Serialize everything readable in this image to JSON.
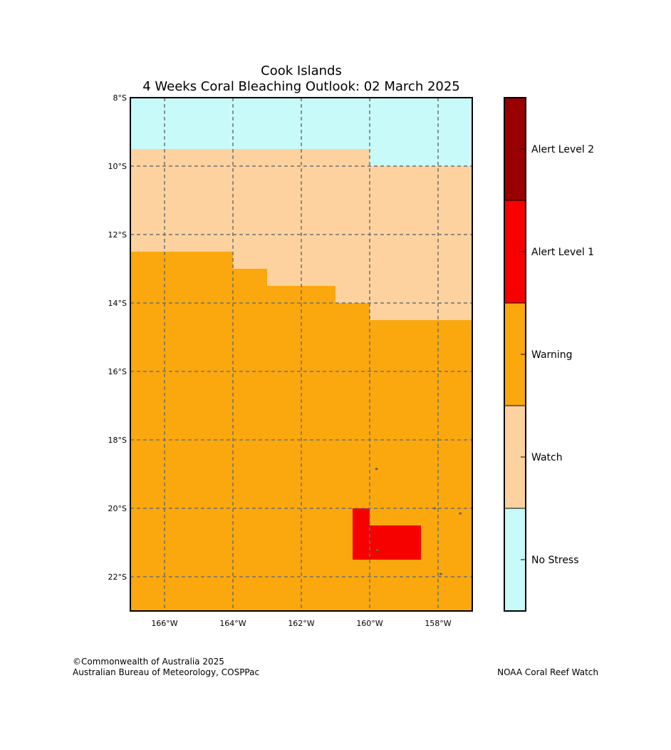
{
  "title": {
    "line1": "Cook Islands",
    "line2": "4 Weeks Coral Bleaching Outlook: 02 March 2025"
  },
  "footer": {
    "copyright": "©Commonwealth of Australia 2025",
    "agency": "Australian Bureau of Meteorology, COSPPac",
    "source": "NOAA Coral Reef Watch"
  },
  "map": {
    "lon_range": [
      -167,
      -157
    ],
    "lat_range": [
      -23,
      -8
    ],
    "lon_ticks": [
      {
        "value": -166,
        "label": "166°W"
      },
      {
        "value": -164,
        "label": "164°W"
      },
      {
        "value": -162,
        "label": "162°W"
      },
      {
        "value": -160,
        "label": "160°W"
      },
      {
        "value": -158,
        "label": "158°W"
      }
    ],
    "lat_ticks": [
      {
        "value": -8,
        "label": "8°S"
      },
      {
        "value": -10,
        "label": "10°S"
      },
      {
        "value": -12,
        "label": "12°S"
      },
      {
        "value": -14,
        "label": "14°S"
      },
      {
        "value": -16,
        "label": "16°S"
      },
      {
        "value": -18,
        "label": "18°S"
      },
      {
        "value": -20,
        "label": "20°S"
      },
      {
        "value": -22,
        "label": "22°S"
      }
    ],
    "grid": true,
    "regions": [
      {
        "level": "no_stress",
        "polygon": [
          [
            -167,
            -8
          ],
          [
            -157,
            -8
          ],
          [
            -157,
            -10
          ],
          [
            -160,
            -10
          ],
          [
            -160,
            -9.5
          ],
          [
            -167,
            -9.5
          ]
        ]
      },
      {
        "level": "watch",
        "polygon": [
          [
            -167,
            -9.5
          ],
          [
            -160,
            -9.5
          ],
          [
            -160,
            -10
          ],
          [
            -157,
            -10
          ],
          [
            -157,
            -14.5
          ],
          [
            -160,
            -14.5
          ],
          [
            -160,
            -14
          ],
          [
            -161,
            -14
          ],
          [
            -161,
            -13.5
          ],
          [
            -163,
            -13.5
          ],
          [
            -163,
            -13
          ],
          [
            -164,
            -13
          ],
          [
            -164,
            -12.5
          ],
          [
            -167,
            -12.5
          ]
        ]
      },
      {
        "level": "warning",
        "polygon": [
          [
            -167,
            -12.5
          ],
          [
            -164,
            -12.5
          ],
          [
            -164,
            -13
          ],
          [
            -163,
            -13
          ],
          [
            -163,
            -13.5
          ],
          [
            -161,
            -13.5
          ],
          [
            -161,
            -14
          ],
          [
            -160,
            -14
          ],
          [
            -160,
            -14.5
          ],
          [
            -157,
            -14.5
          ],
          [
            -157,
            -23
          ],
          [
            -167,
            -23
          ]
        ]
      },
      {
        "level": "alert_1",
        "polygon": [
          [
            -160.5,
            -20
          ],
          [
            -160,
            -20
          ],
          [
            -160,
            -20.5
          ],
          [
            -158.5,
            -20.5
          ],
          [
            -158.5,
            -21.5
          ],
          [
            -160.5,
            -21.5
          ]
        ]
      }
    ],
    "islands": [
      {
        "lon": -159.8,
        "lat": -18.85
      },
      {
        "lon": -158.1,
        "lat": -20.0
      },
      {
        "lon": -157.35,
        "lat": -20.15
      },
      {
        "lon": -159.78,
        "lat": -21.22
      },
      {
        "lon": -157.92,
        "lat": -21.92
      }
    ]
  },
  "legend": {
    "levels": [
      {
        "key": "alert_2",
        "label": "Alert Level 2",
        "color": "#990000"
      },
      {
        "key": "alert_1",
        "label": "Alert Level 1",
        "color": "#f60000"
      },
      {
        "key": "warning",
        "label": "Warning",
        "color": "#faa80d"
      },
      {
        "key": "watch",
        "label": "Watch",
        "color": "#fed29f"
      },
      {
        "key": "no_stress",
        "label": "No Stress",
        "color": "#c8fafa"
      }
    ]
  },
  "colors": {
    "grid": "#707070",
    "island": "#606070",
    "frame": "#000000"
  }
}
